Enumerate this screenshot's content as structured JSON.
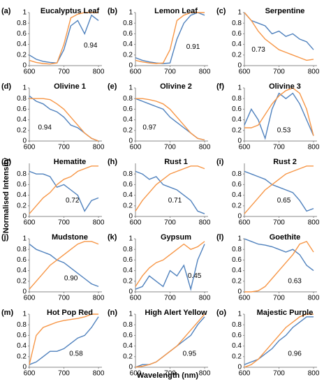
{
  "axis_labels": {
    "y": "Normalised Intensity",
    "x": "Wavelength (nm)"
  },
  "chart_data": [
    {
      "type": "line",
      "panel": "(a)",
      "title": "Eucalyptus Leaf",
      "annotation": "0.94",
      "x": [
        600,
        620,
        640,
        660,
        680,
        700,
        720,
        740,
        760,
        780,
        800
      ],
      "xlim": [
        600,
        810
      ],
      "xticks": [
        600,
        700,
        800
      ],
      "ylim": [
        0,
        1
      ],
      "yticks": [
        0,
        0.2,
        0.4,
        0.6,
        0.8,
        1
      ],
      "series": [
        {
          "color": "#4f81bd",
          "values": [
            0.2,
            0.12,
            0.08,
            0.06,
            0.05,
            0.3,
            0.75,
            0.85,
            0.6,
            0.95,
            0.85
          ]
        },
        {
          "color": "#f79646",
          "values": [
            0.1,
            0.06,
            0.04,
            0.03,
            0.05,
            0.4,
            0.9,
            0.97,
            1,
            1,
            1
          ]
        }
      ]
    },
    {
      "type": "line",
      "panel": "(b)",
      "title": "Lemon Leaf",
      "annotation": "0.91",
      "x": [
        600,
        620,
        640,
        660,
        680,
        700,
        720,
        740,
        760,
        780,
        800
      ],
      "xlim": [
        600,
        810
      ],
      "xticks": [
        600,
        700,
        800
      ],
      "ylim": [
        0,
        1
      ],
      "yticks": [
        0,
        0.2,
        0.4,
        0.6,
        0.8,
        1
      ],
      "series": [
        {
          "color": "#4f81bd",
          "values": [
            0.15,
            0.1,
            0.07,
            0.05,
            0.04,
            0.05,
            0.5,
            0.8,
            0.95,
            1,
            0.95
          ]
        },
        {
          "color": "#f79646",
          "values": [
            0.1,
            0.07,
            0.05,
            0.04,
            0.05,
            0.3,
            0.85,
            0.95,
            1,
            1,
            1
          ]
        }
      ]
    },
    {
      "type": "line",
      "panel": "(c)",
      "title": "Serpentine",
      "annotation": "0.73",
      "x": [
        600,
        620,
        640,
        660,
        680,
        700,
        720,
        740,
        760,
        780,
        800
      ],
      "xlim": [
        600,
        810
      ],
      "xticks": [
        600,
        700,
        800
      ],
      "ylim": [
        0,
        1
      ],
      "yticks": [
        0,
        0.2,
        0.4,
        0.6,
        0.8,
        1
      ],
      "series": [
        {
          "color": "#4f81bd",
          "values": [
            1,
            0.85,
            0.8,
            0.75,
            0.6,
            0.65,
            0.55,
            0.6,
            0.5,
            0.45,
            0.3
          ]
        },
        {
          "color": "#f79646",
          "values": [
            1,
            0.85,
            0.65,
            0.5,
            0.4,
            0.3,
            0.25,
            0.2,
            0.15,
            0.1,
            0.12
          ]
        }
      ]
    },
    {
      "type": "line",
      "panel": "(d)",
      "title": "Olivine 1",
      "annotation": "0.94",
      "x": [
        600,
        620,
        640,
        660,
        680,
        700,
        720,
        740,
        760,
        780,
        800
      ],
      "xlim": [
        600,
        810
      ],
      "xticks": [
        600,
        700,
        800
      ],
      "ylim": [
        0,
        1
      ],
      "yticks": [
        0,
        0.2,
        0.4,
        0.6,
        0.8,
        1
      ],
      "series": [
        {
          "color": "#4f81bd",
          "values": [
            0.85,
            0.75,
            0.7,
            0.6,
            0.55,
            0.45,
            0.3,
            0.25,
            0.15,
            0.05,
            0
          ]
        },
        {
          "color": "#f79646",
          "values": [
            0.8,
            0.8,
            0.8,
            0.78,
            0.7,
            0.6,
            0.45,
            0.3,
            0.15,
            0.05,
            0
          ]
        }
      ]
    },
    {
      "type": "line",
      "panel": "(e)",
      "title": "Olivine 2",
      "annotation": "0.97",
      "x": [
        600,
        620,
        640,
        660,
        680,
        700,
        720,
        740,
        760,
        780,
        800
      ],
      "xlim": [
        600,
        810
      ],
      "xticks": [
        600,
        700,
        800
      ],
      "ylim": [
        0,
        1
      ],
      "yticks": [
        0,
        0.2,
        0.4,
        0.6,
        0.8,
        1
      ],
      "series": [
        {
          "color": "#4f81bd",
          "values": [
            0.8,
            0.75,
            0.7,
            0.65,
            0.6,
            0.45,
            0.35,
            0.25,
            0.15,
            0.05,
            0.02
          ]
        },
        {
          "color": "#f79646",
          "values": [
            0.8,
            0.8,
            0.78,
            0.75,
            0.7,
            0.6,
            0.45,
            0.3,
            0.15,
            0.05,
            0.02
          ]
        }
      ]
    },
    {
      "type": "line",
      "panel": "(f)",
      "title": "Olivine 3",
      "annotation": "0.53",
      "x": [
        600,
        620,
        640,
        660,
        680,
        700,
        720,
        740,
        760,
        780,
        800
      ],
      "xlim": [
        600,
        810
      ],
      "xticks": [
        600,
        700,
        800
      ],
      "ylim": [
        0,
        1
      ],
      "yticks": [
        0,
        0.2,
        0.4,
        0.6,
        0.8,
        1
      ],
      "series": [
        {
          "color": "#4f81bd",
          "values": [
            0.3,
            0.6,
            0.4,
            0.05,
            0.6,
            0.9,
            0.8,
            0.9,
            0.7,
            0.4,
            0.1
          ]
        },
        {
          "color": "#f79646",
          "values": [
            0.25,
            0.25,
            0.3,
            0.5,
            0.7,
            0.85,
            0.95,
            1,
            0.9,
            0.6,
            0.1
          ]
        }
      ]
    },
    {
      "type": "line",
      "panel": "(g)",
      "title": "Hematite",
      "annotation": "0.72",
      "x": [
        600,
        620,
        640,
        660,
        680,
        700,
        720,
        740,
        760,
        780,
        800
      ],
      "xlim": [
        600,
        810
      ],
      "xticks": [
        600,
        700,
        800
      ],
      "ylim": [
        0,
        1
      ],
      "yticks": [
        0,
        0.2,
        0.4,
        0.6,
        0.8
      ],
      "series": [
        {
          "color": "#4f81bd",
          "values": [
            0.85,
            0.8,
            0.8,
            0.75,
            0.55,
            0.6,
            0.5,
            0.4,
            0.1,
            0.3,
            0.35
          ]
        },
        {
          "color": "#f79646",
          "values": [
            0.05,
            0.2,
            0.35,
            0.45,
            0.6,
            0.7,
            0.75,
            0.85,
            0.9,
            0.95,
            0.95
          ]
        }
      ]
    },
    {
      "type": "line",
      "panel": "(h)",
      "title": "Rust 1",
      "annotation": "0.71",
      "x": [
        600,
        620,
        640,
        660,
        680,
        700,
        720,
        740,
        760,
        780,
        800
      ],
      "xlim": [
        600,
        810
      ],
      "xticks": [
        600,
        700,
        800
      ],
      "ylim": [
        0,
        1
      ],
      "yticks": [
        0,
        0.2,
        0.4,
        0.6,
        0.8
      ],
      "series": [
        {
          "color": "#4f81bd",
          "values": [
            0.85,
            0.8,
            0.7,
            0.75,
            0.6,
            0.55,
            0.5,
            0.4,
            0.3,
            0.1,
            0.05
          ]
        },
        {
          "color": "#f79646",
          "values": [
            0.1,
            0.3,
            0.45,
            0.6,
            0.7,
            0.8,
            0.85,
            0.9,
            0.95,
            0.95,
            0.9
          ]
        }
      ]
    },
    {
      "type": "line",
      "panel": "(i)",
      "title": "Rust 2",
      "annotation": "0.65",
      "x": [
        600,
        620,
        640,
        660,
        680,
        700,
        720,
        740,
        760,
        780,
        800
      ],
      "xlim": [
        600,
        810
      ],
      "xticks": [
        600,
        700,
        800
      ],
      "ylim": [
        0,
        1
      ],
      "yticks": [
        0,
        0.2,
        0.4,
        0.6,
        0.8
      ],
      "series": [
        {
          "color": "#4f81bd",
          "values": [
            0.85,
            0.8,
            0.75,
            0.7,
            0.6,
            0.55,
            0.5,
            0.45,
            0.3,
            0.1,
            0.15
          ]
        },
        {
          "color": "#f79646",
          "values": [
            0.05,
            0.2,
            0.35,
            0.5,
            0.6,
            0.7,
            0.8,
            0.85,
            0.9,
            0.95,
            0.95
          ]
        }
      ]
    },
    {
      "type": "line",
      "panel": "(j)",
      "title": "Mudstone",
      "annotation": "0.90",
      "x": [
        600,
        620,
        640,
        660,
        680,
        700,
        720,
        740,
        760,
        780,
        800
      ],
      "xlim": [
        600,
        810
      ],
      "xticks": [
        600,
        700,
        800
      ],
      "ylim": [
        0,
        1
      ],
      "yticks": [
        0,
        0.2,
        0.4,
        0.6,
        0.8,
        1
      ],
      "series": [
        {
          "color": "#4f81bd",
          "values": [
            0.9,
            0.8,
            0.75,
            0.7,
            0.6,
            0.55,
            0.45,
            0.35,
            0.25,
            0.15,
            0.1
          ]
        },
        {
          "color": "#f79646",
          "values": [
            0.05,
            0.2,
            0.35,
            0.5,
            0.6,
            0.7,
            0.8,
            0.9,
            0.95,
            0.95,
            0.9
          ]
        }
      ]
    },
    {
      "type": "line",
      "panel": "(k)",
      "title": "Gypsum",
      "annotation": "0.45",
      "x": [
        600,
        620,
        640,
        660,
        680,
        700,
        720,
        740,
        760,
        780,
        800
      ],
      "xlim": [
        600,
        810
      ],
      "xticks": [
        600,
        700,
        800
      ],
      "ylim": [
        0,
        1
      ],
      "yticks": [
        0,
        0.2,
        0.4,
        0.6,
        0.8,
        1
      ],
      "series": [
        {
          "color": "#4f81bd",
          "values": [
            0.05,
            0.1,
            0.3,
            0.2,
            0.1,
            0.4,
            0.3,
            0.5,
            0.05,
            0.6,
            0.9
          ]
        },
        {
          "color": "#f79646",
          "values": [
            0.1,
            0.3,
            0.45,
            0.55,
            0.6,
            0.7,
            0.8,
            0.9,
            0.8,
            0.85,
            0.95
          ]
        }
      ]
    },
    {
      "type": "line",
      "panel": "(l)",
      "title": "Goethite",
      "annotation": "0.63",
      "x": [
        600,
        620,
        640,
        660,
        680,
        700,
        720,
        740,
        760,
        780,
        800
      ],
      "xlim": [
        600,
        810
      ],
      "xticks": [
        600,
        700,
        800
      ],
      "ylim": [
        0,
        1
      ],
      "yticks": [
        0,
        0.2,
        0.4,
        0.6,
        0.8,
        1
      ],
      "series": [
        {
          "color": "#4f81bd",
          "values": [
            1,
            0.95,
            0.9,
            0.88,
            0.85,
            0.8,
            0.75,
            0.8,
            0.7,
            0.5,
            0.4
          ]
        },
        {
          "color": "#f79646",
          "values": [
            0,
            0,
            0.02,
            0.1,
            0.25,
            0.4,
            0.55,
            0.7,
            0.9,
            0.95,
            0.75
          ]
        }
      ]
    },
    {
      "type": "line",
      "panel": "(m)",
      "title": "Hot Pop Red",
      "annotation": "0.58",
      "x": [
        600,
        620,
        640,
        660,
        680,
        700,
        720,
        740,
        760,
        780,
        800
      ],
      "xlim": [
        600,
        810
      ],
      "xticks": [
        600,
        700,
        800
      ],
      "ylim": [
        0,
        1
      ],
      "yticks": [
        0,
        0.2,
        0.4,
        0.6,
        0.8,
        1
      ],
      "series": [
        {
          "color": "#4f81bd",
          "values": [
            0.05,
            0.1,
            0.2,
            0.3,
            0.3,
            0.35,
            0.45,
            0.55,
            0.6,
            0.75,
            0.95
          ]
        },
        {
          "color": "#f79646",
          "values": [
            0.05,
            0.6,
            0.75,
            0.8,
            0.85,
            0.88,
            0.9,
            0.92,
            0.95,
            1,
            1
          ]
        }
      ]
    },
    {
      "type": "line",
      "panel": "(n)",
      "title": "High Alert Yellow",
      "annotation": "0.95",
      "x": [
        600,
        620,
        640,
        660,
        680,
        700,
        720,
        740,
        760,
        780,
        800
      ],
      "xlim": [
        600,
        810
      ],
      "xticks": [
        600,
        700,
        800
      ],
      "ylim": [
        0,
        1
      ],
      "yticks": [
        0,
        0.2,
        0.4,
        0.6,
        0.8,
        1
      ],
      "series": [
        {
          "color": "#4f81bd",
          "values": [
            0,
            0.05,
            0.05,
            0.1,
            0.2,
            0.3,
            0.4,
            0.5,
            0.6,
            0.8,
            0.95
          ]
        },
        {
          "color": "#f79646",
          "values": [
            0,
            0.02,
            0.05,
            0.1,
            0.2,
            0.3,
            0.4,
            0.55,
            0.7,
            0.85,
            1
          ]
        }
      ]
    },
    {
      "type": "line",
      "panel": "(o)",
      "title": "Majestic Purple",
      "annotation": "0.96",
      "x": [
        600,
        620,
        640,
        660,
        680,
        700,
        720,
        740,
        760,
        780,
        800
      ],
      "xlim": [
        600,
        810
      ],
      "xticks": [
        600,
        700,
        800
      ],
      "ylim": [
        0,
        1
      ],
      "yticks": [
        0,
        0.2,
        0.4,
        0.6,
        0.8,
        1
      ],
      "series": [
        {
          "color": "#4f81bd",
          "values": [
            0.05,
            0.1,
            0.15,
            0.25,
            0.35,
            0.5,
            0.6,
            0.75,
            0.85,
            0.95,
            0.95
          ]
        },
        {
          "color": "#f79646",
          "values": [
            0,
            0.05,
            0.15,
            0.3,
            0.45,
            0.6,
            0.75,
            0.85,
            0.95,
            1,
            1
          ]
        }
      ]
    }
  ]
}
